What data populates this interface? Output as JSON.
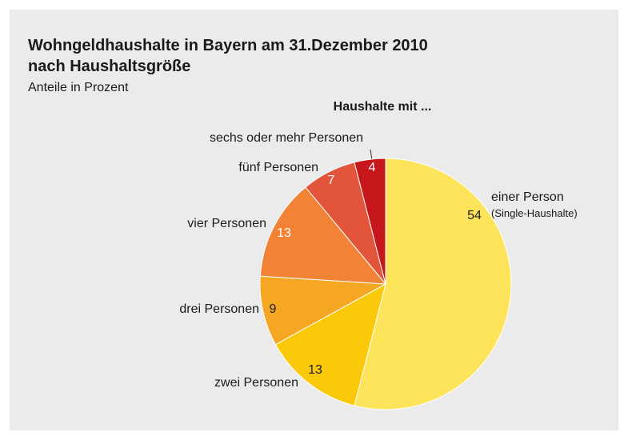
{
  "chart_data": {
    "type": "pie",
    "title": "Wohngeldhaushalte in Bayern am 31.Dezember 2010",
    "title_line2": "nach Haushaltsgröße",
    "subtitle": "Anteile in Prozent",
    "pie_title": "Haushalte mit ...",
    "categories": [
      "einer Person",
      "zwei Personen",
      "drei Personen",
      "vier Personen",
      "fünf Personen",
      "sechs oder mehr Personen"
    ],
    "annotation": "(Single-Haushalte)",
    "values": [
      54,
      13,
      9,
      13,
      7,
      4
    ],
    "colors": [
      "#fde45a",
      "#fcc90a",
      "#f5a623",
      "#f28235",
      "#e2553a",
      "#c8161d"
    ]
  }
}
